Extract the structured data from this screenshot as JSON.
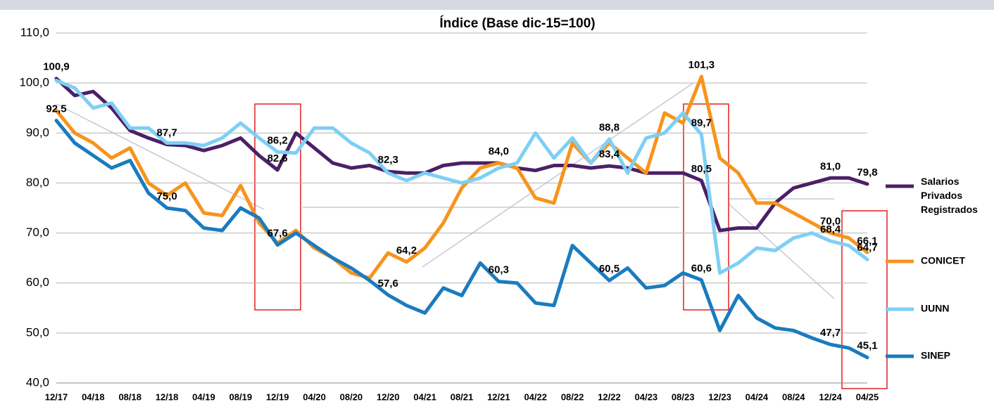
{
  "chart_data": {
    "type": "line",
    "subtitle": "Índice (Base dic-15=100)",
    "categories": [
      "12/17",
      null,
      "04/18",
      null,
      "08/18",
      null,
      "12/18",
      null,
      "04/19",
      null,
      "08/19",
      null,
      "12/19",
      null,
      "04/20",
      null,
      "08/20",
      null,
      "12/20",
      null,
      "04/21",
      null,
      "08/21",
      null,
      "12/21",
      null,
      "04/22",
      null,
      "08/22",
      null,
      "12/22",
      null,
      "04/23",
      null,
      "08/23",
      null,
      "12/23",
      null,
      "04/24",
      null,
      "08/24",
      null,
      "12/24",
      null,
      "04/25"
    ],
    "ylim": [
      40,
      110
    ],
    "yticks": [
      {
        "value": 40,
        "label": "40,0"
      },
      {
        "value": 50,
        "label": "50,0"
      },
      {
        "value": 60,
        "label": "60,0"
      },
      {
        "value": 70,
        "label": "70,0"
      },
      {
        "value": 80,
        "label": "80,0"
      },
      {
        "value": 90,
        "label": "90,0"
      },
      {
        "value": 100,
        "label": "100,0"
      },
      {
        "value": 110,
        "label": "110,0"
      }
    ],
    "grid": true,
    "legend": "right",
    "series": [
      {
        "name": "Salarios Privados Registrados",
        "color": "#4b2067",
        "values": [
          100.9,
          97.5,
          98.3,
          95,
          90.5,
          89,
          87.7,
          87.5,
          86.5,
          87.5,
          89,
          85.5,
          82.6,
          90,
          87,
          84,
          83,
          83.5,
          82.3,
          82,
          82,
          83.5,
          84,
          84,
          84.0,
          83,
          82.5,
          83.5,
          83.5,
          83,
          83.4,
          83,
          82,
          82,
          82,
          80.5,
          70.5,
          71,
          71,
          76,
          79,
          80,
          81.0,
          81,
          79.8
        ],
        "value_labels": [
          "100,9",
          null,
          null,
          null,
          null,
          null,
          "87,7",
          null,
          null,
          null,
          null,
          null,
          "82,6",
          null,
          null,
          null,
          null,
          null,
          "82,3",
          null,
          null,
          null,
          null,
          null,
          "84,0",
          null,
          null,
          null,
          null,
          null,
          "83,4",
          null,
          null,
          null,
          null,
          "80,5",
          null,
          null,
          null,
          null,
          null,
          null,
          "81,0",
          null,
          "79,8"
        ]
      },
      {
        "name": "CONICET",
        "color": "#f7941d",
        "values": [
          94.5,
          90,
          88,
          85,
          87,
          80,
          77.5,
          80,
          74,
          73.5,
          79.5,
          72,
          68,
          70.5,
          67,
          65,
          62,
          61,
          66,
          64.2,
          67,
          72,
          79,
          83,
          84,
          83,
          77,
          76,
          88,
          84,
          88,
          85,
          82,
          94,
          92,
          101.3,
          85,
          82,
          76,
          76,
          74,
          72,
          70.0,
          69,
          66.1
        ],
        "value_labels": [
          null,
          null,
          null,
          null,
          null,
          null,
          null,
          null,
          null,
          null,
          null,
          null,
          null,
          null,
          null,
          null,
          null,
          null,
          null,
          "64,2",
          null,
          null,
          null,
          null,
          null,
          null,
          null,
          null,
          null,
          null,
          null,
          null,
          null,
          null,
          null,
          "101,3",
          null,
          null,
          null,
          null,
          null,
          null,
          "70,0",
          null,
          "66,1"
        ]
      },
      {
        "name": "UUNN",
        "color": "#7ecff4",
        "values": [
          100.5,
          99,
          95,
          96,
          91,
          91,
          88,
          88,
          87.5,
          89,
          92,
          89,
          86.2,
          86,
          91,
          91,
          88,
          86,
          82,
          80.5,
          82,
          81,
          80,
          81,
          83,
          84,
          90,
          85,
          89,
          84,
          88.8,
          82,
          89,
          90,
          94,
          89.7,
          62,
          64,
          67,
          66.5,
          69,
          70,
          68.4,
          67.5,
          64.7
        ],
        "value_labels": [
          null,
          null,
          null,
          null,
          null,
          null,
          null,
          null,
          null,
          null,
          null,
          null,
          "86,2",
          null,
          null,
          null,
          null,
          null,
          null,
          null,
          null,
          null,
          null,
          null,
          null,
          null,
          null,
          null,
          null,
          null,
          "88,8",
          null,
          null,
          null,
          null,
          "89,7",
          null,
          null,
          null,
          null,
          null,
          null,
          "68,4",
          null,
          "64,7"
        ]
      },
      {
        "name": "SINEP",
        "color": "#1b7bbf",
        "values": [
          92.5,
          88,
          85.5,
          83,
          84.5,
          78,
          75.0,
          74.5,
          71,
          70.5,
          75,
          73,
          67.6,
          70,
          67.5,
          65,
          63,
          60.5,
          57.6,
          55.5,
          54,
          59,
          57.5,
          64,
          60.3,
          60,
          56,
          55.5,
          67.5,
          64,
          60.5,
          63,
          59,
          59.5,
          62,
          60.6,
          50.5,
          57.5,
          53,
          51,
          50.5,
          49,
          47.7,
          47,
          45.1
        ],
        "value_labels": [
          "92,5",
          null,
          null,
          null,
          null,
          null,
          "75,0",
          null,
          null,
          null,
          null,
          null,
          "67,6",
          null,
          null,
          null,
          null,
          null,
          "57,6",
          null,
          null,
          null,
          null,
          null,
          "60,3",
          null,
          null,
          null,
          null,
          null,
          "60,5",
          null,
          null,
          null,
          null,
          "60,6",
          null,
          null,
          null,
          null,
          null,
          null,
          "47,7",
          null,
          "45,1"
        ]
      }
    ]
  }
}
